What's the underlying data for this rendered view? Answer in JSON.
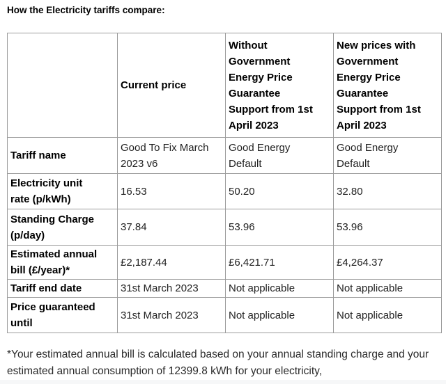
{
  "page": {
    "title": "How the Electricity tariffs compare:",
    "footnote": "*Your estimated annual bill is calculated based on your annual standing charge and your estimated annual consumption of 12399.8 kWh for your electricity,"
  },
  "table": {
    "columns": [
      "",
      "Current price",
      "Without\nGovernment\nEnergy Price\nGuarantee\nSupport from 1st\nApril 2023",
      "New prices with\nGovernment\nEnergy Price\nGuarantee\nSupport from 1st\nApril 2023"
    ],
    "rows": [
      {
        "label": "Tariff name",
        "cells": [
          "Good To Fix March\n2023 v6",
          "Good Energy\nDefault",
          "Good Energy\nDefault"
        ]
      },
      {
        "label": "Electricity unit\nrate (p/kWh)",
        "cells": [
          "16.53",
          "50.20",
          "32.80"
        ]
      },
      {
        "label": "Standing Charge\n(p/day)",
        "cells": [
          "37.84",
          "53.96",
          "53.96"
        ]
      },
      {
        "label": "Estimated annual\nbill (£/year)*",
        "cells": [
          "£2,187.44",
          "£6,421.71",
          "£4,264.37"
        ]
      },
      {
        "label": "Tariff end date",
        "cells": [
          "31st March 2023",
          "Not applicable",
          "Not applicable"
        ]
      },
      {
        "label": "Price guaranteed\nuntil",
        "cells": [
          "31st March 2023",
          "Not applicable",
          "Not applicable"
        ]
      }
    ]
  }
}
